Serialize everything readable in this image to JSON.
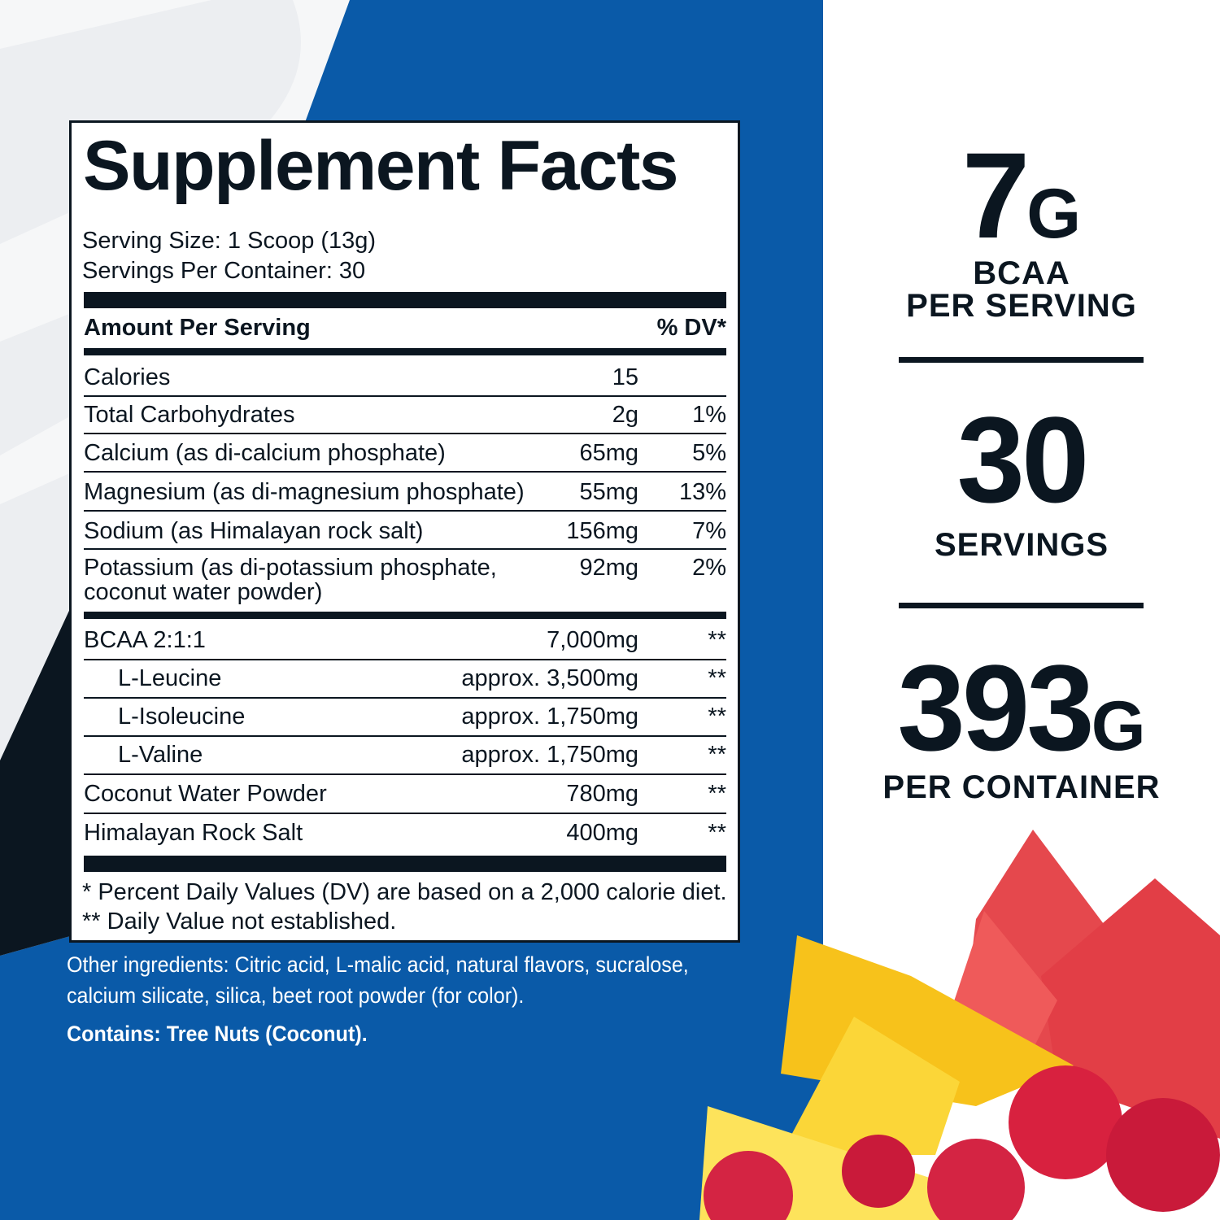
{
  "colors": {
    "brand_blue": "#0a5aa8",
    "navy": "#0b1620",
    "light_gray": "#eceef1"
  },
  "facts": {
    "title": "Supplement Facts",
    "serving_size": "Serving Size: 1 Scoop (13g)",
    "servings_per_container": "Servings Per Container: 30",
    "amount_header": "Amount Per Serving",
    "dv_header": "% DV*",
    "nutrients": [
      {
        "name": "Calories",
        "amount": "15",
        "dv": ""
      },
      {
        "name": "Total Carbohydrates",
        "amount": "2g",
        "dv": "1%"
      },
      {
        "name": "Calcium (as di-calcium phosphate)",
        "amount": "65mg",
        "dv": "5%"
      },
      {
        "name": "Magnesium (as di-magnesium phosphate)",
        "amount": "55mg",
        "dv": "13%"
      },
      {
        "name": "Sodium (as Himalayan rock salt)",
        "amount": "156mg",
        "dv": "7%"
      },
      {
        "name": "Potassium (as di-potassium phosphate,",
        "name_line2": "coconut water powder)",
        "amount": "92mg",
        "dv": "2%"
      }
    ],
    "blend": [
      {
        "name": "BCAA 2:1:1",
        "amount": "7,000mg",
        "dv": "**"
      },
      {
        "name": "L-Leucine",
        "amount": "approx. 3,500mg",
        "dv": "**"
      },
      {
        "name": "L-Isoleucine",
        "amount": "approx. 1,750mg",
        "dv": "**"
      },
      {
        "name": "L-Valine",
        "amount": "approx. 1,750mg",
        "dv": "**"
      },
      {
        "name": "Coconut Water Powder",
        "amount": "780mg",
        "dv": "**"
      },
      {
        "name": "Himalayan Rock Salt",
        "amount": "400mg",
        "dv": "**"
      }
    ],
    "footnote1": "* Percent Daily Values (DV) are based on a 2,000 calorie diet.",
    "footnote2": "** Daily Value not established."
  },
  "other_ingredients": {
    "line1": "Other ingredients: Citric acid, L-malic acid, natural flavors, sucralose,",
    "line2": "calcium silicate, silica, beet root powder (for color).",
    "allergen": "Contains: Tree Nuts (Coconut)."
  },
  "stats": [
    {
      "value": "7",
      "unit": "G",
      "label1": "BCAA",
      "label2": "PER SERVING"
    },
    {
      "value": "30",
      "unit": "",
      "label1": "SERVINGS"
    },
    {
      "value": "393",
      "unit": "G",
      "label1": "PER CONTAINER"
    }
  ]
}
